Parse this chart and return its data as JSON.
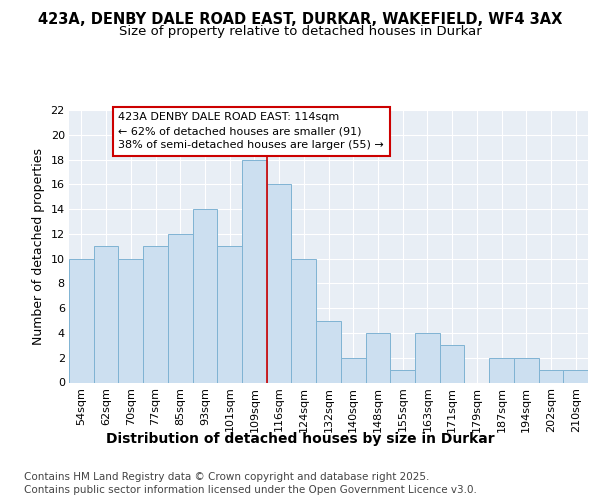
{
  "title1": "423A, DENBY DALE ROAD EAST, DURKAR, WAKEFIELD, WF4 3AX",
  "title2": "Size of property relative to detached houses in Durkar",
  "xlabel": "Distribution of detached houses by size in Durkar",
  "ylabel": "Number of detached properties",
  "footnote1": "Contains HM Land Registry data © Crown copyright and database right 2025.",
  "footnote2": "Contains public sector information licensed under the Open Government Licence v3.0.",
  "categories": [
    "54sqm",
    "62sqm",
    "70sqm",
    "77sqm",
    "85sqm",
    "93sqm",
    "101sqm",
    "109sqm",
    "116sqm",
    "124sqm",
    "132sqm",
    "140sqm",
    "148sqm",
    "155sqm",
    "163sqm",
    "171sqm",
    "179sqm",
    "187sqm",
    "194sqm",
    "202sqm",
    "210sqm"
  ],
  "values": [
    10,
    11,
    10,
    11,
    12,
    14,
    11,
    18,
    16,
    10,
    5,
    2,
    4,
    1,
    4,
    3,
    0,
    2,
    2,
    1,
    1
  ],
  "bar_color": "#ccdff0",
  "bar_edge_color": "#7fb3d3",
  "highlight_index": 8,
  "highlight_line_color": "#cc0000",
  "annotation_text": "423A DENBY DALE ROAD EAST: 114sqm\n← 62% of detached houses are smaller (91)\n38% of semi-detached houses are larger (55) →",
  "annotation_box_color": "#ffffff",
  "annotation_box_edge": "#cc0000",
  "ylim": [
    0,
    22
  ],
  "yticks": [
    0,
    2,
    4,
    6,
    8,
    10,
    12,
    14,
    16,
    18,
    20,
    22
  ],
  "bg_color": "#ffffff",
  "plot_bg_color": "#e8eef5",
  "grid_color": "#ffffff",
  "title1_fontsize": 10.5,
  "title2_fontsize": 9.5,
  "xlabel_fontsize": 10,
  "ylabel_fontsize": 9,
  "tick_fontsize": 8,
  "annotation_fontsize": 8,
  "footnote_fontsize": 7.5
}
